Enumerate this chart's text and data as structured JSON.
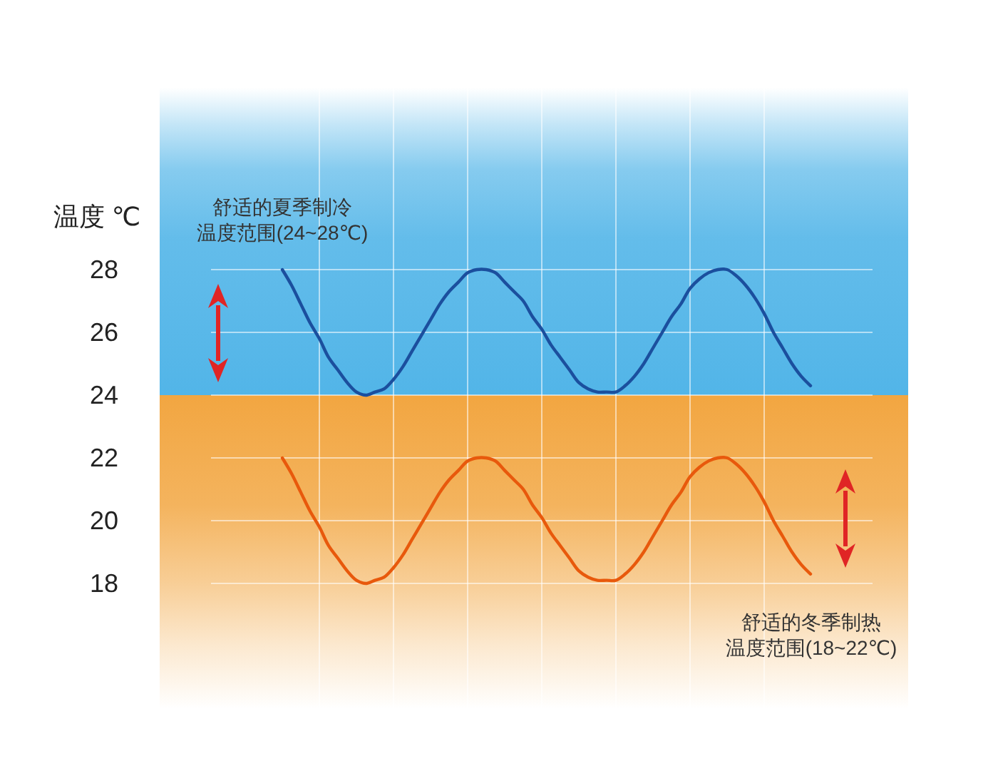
{
  "chart_data": {
    "type": "line",
    "ylabel": "温度 ℃",
    "annotations": [
      "舒适的夏季制冷温度范围(24~28℃)",
      "舒适的冬季制热温度范围(18~22℃)"
    ],
    "categories": [
      null,
      null,
      null,
      null,
      null,
      null,
      null,
      null,
      null,
      null,
      null,
      null,
      null,
      null,
      null,
      null,
      null,
      null,
      null,
      null,
      null,
      null,
      null,
      null,
      null,
      null,
      null,
      null,
      null,
      null,
      null,
      null,
      null,
      null,
      null,
      null,
      null,
      null,
      null,
      null,
      null,
      null,
      null,
      null,
      null,
      null,
      null,
      null,
      null,
      null,
      null,
      null,
      null,
      null,
      null,
      null,
      null,
      null
    ],
    "series": [
      {
        "color": "#1b4f9e",
        "values": [
          28,
          27.5,
          26.9,
          26.3,
          25.8,
          25.2,
          24.8,
          24.4,
          24.1,
          24,
          24.1,
          24.2,
          24.5,
          24.9,
          25.4,
          25.9,
          26.4,
          26.9,
          27.3,
          27.6,
          27.9,
          28,
          28,
          27.9,
          27.6,
          27.3,
          27,
          26.5,
          26.1,
          25.6,
          25.2,
          24.8,
          24.4,
          24.2,
          24.1,
          24.1,
          24.1,
          24.3,
          24.6,
          25,
          25.5,
          26,
          26.5,
          26.9,
          27.4,
          27.7,
          27.9,
          28,
          28,
          27.8,
          27.5,
          27.1,
          26.6,
          26,
          25.5,
          25,
          24.6,
          24.3
        ]
      },
      {
        "color": "#e8590c",
        "values": [
          22,
          21.5,
          20.9,
          20.3,
          19.8,
          19.2,
          18.8,
          18.4,
          18.1,
          18,
          18.1,
          18.2,
          18.5,
          18.9,
          19.4,
          19.9,
          20.4,
          20.9,
          21.3,
          21.6,
          21.9,
          22,
          22,
          21.9,
          21.6,
          21.3,
          21,
          20.5,
          20.1,
          19.6,
          19.2,
          18.8,
          18.4,
          18.2,
          18.1,
          18.1,
          18.1,
          18.3,
          18.6,
          19,
          19.5,
          20,
          20.5,
          20.9,
          21.4,
          21.7,
          21.9,
          22,
          22,
          21.8,
          21.5,
          21.1,
          20.6,
          20,
          19.5,
          19,
          18.6,
          18.3
        ]
      }
    ],
    "ylim": [
      14,
      34
    ],
    "yticks": [
      18,
      20,
      22,
      24,
      26,
      28
    ],
    "bands": [
      {
        "axis": "y",
        "from": 24,
        "to": 34,
        "color": "#52b5e8"
      },
      {
        "axis": "y",
        "from": 14,
        "to": 24,
        "color": "#f2a641"
      }
    ],
    "grid": true
  }
}
